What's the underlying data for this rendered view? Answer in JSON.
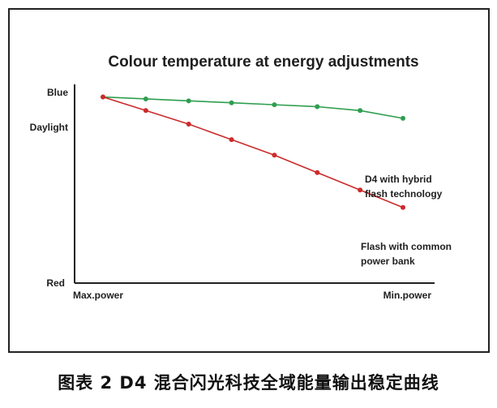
{
  "chart_data": {
    "type": "line",
    "title": "Colour temperature at energy adjustments",
    "x_ticks": [
      "Max.power",
      "Min.power"
    ],
    "y_ticks": [
      "Blue",
      "Daylight",
      "Red"
    ],
    "x": [
      1,
      2,
      3,
      4,
      5,
      6,
      7,
      8
    ],
    "ylim": [
      0,
      1
    ],
    "series": [
      {
        "name": "D4 with hybrid flash technology",
        "label_lines": [
          "D4 with hybrid",
          "flash technology"
        ],
        "color": "#2e9e4f",
        "values": [
          0.96,
          0.95,
          0.94,
          0.93,
          0.92,
          0.91,
          0.89,
          0.85
        ]
      },
      {
        "name": "Flash with common power bank",
        "label_lines": [
          "Flash with common",
          "power bank"
        ],
        "color": "#cc2b2b",
        "values": [
          0.96,
          0.89,
          0.82,
          0.74,
          0.66,
          0.57,
          0.48,
          0.39
        ]
      }
    ],
    "grid": false,
    "legend": "inline labels"
  },
  "caption": "图表 2 D4 混合闪光科技全域能量输出稳定曲线"
}
